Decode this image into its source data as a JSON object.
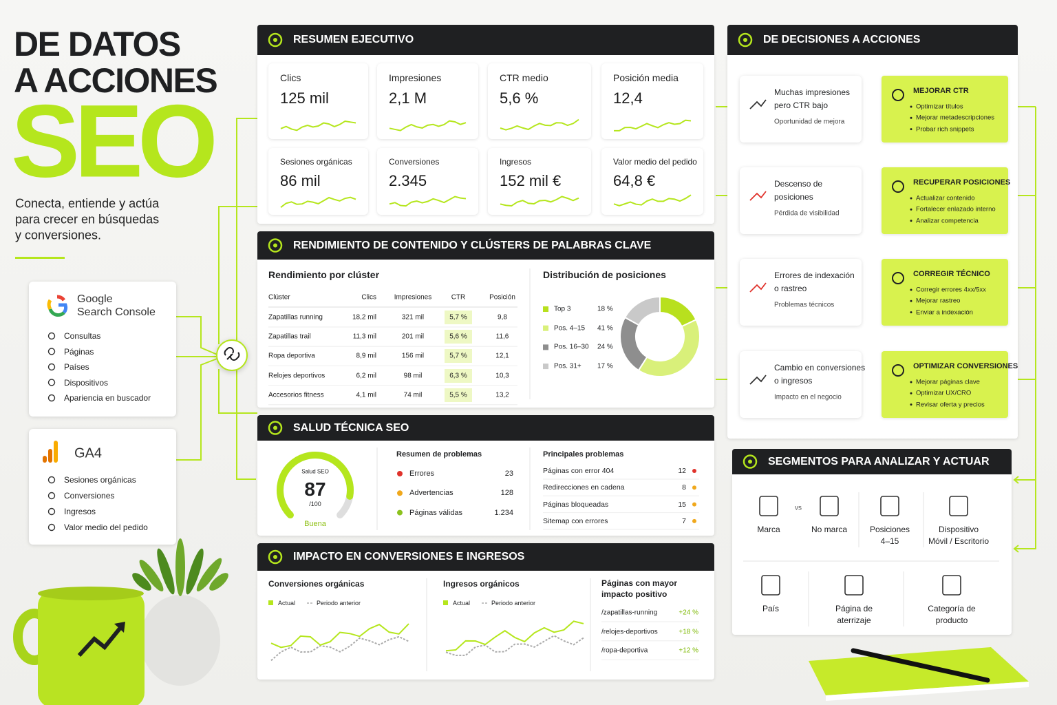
{
  "header": {
    "title_line1": "DE DATOS",
    "title_line2": "A ACCIONES",
    "title_big": "SEO",
    "subtitle_lines": [
      "Conecta, entiende y actúa",
      "para crecer en búsquedas",
      "y conversiones."
    ]
  },
  "sources": [
    {
      "name_lines": [
        "Google",
        "Search Console"
      ],
      "items": [
        "Consultas",
        "Páginas",
        "Países",
        "Dispositivos",
        "Apariencia en buscador"
      ]
    },
    {
      "name_lines": [
        "GA4"
      ],
      "items": [
        "Sesiones orgánicas",
        "Conversiones",
        "Ingresos",
        "Valor medio del pedido"
      ]
    }
  ],
  "summary": {
    "title": "RESUMEN EJECUTIVO",
    "kpis": [
      {
        "label": "Clics",
        "value": "125 mil"
      },
      {
        "label": "Impresiones",
        "value": "2,1 M"
      },
      {
        "label": "CTR medio",
        "value": "5,6 %"
      },
      {
        "label": "Posición media",
        "value": "12,4"
      },
      {
        "label": "Sesiones orgánicas",
        "value": "86 mil"
      },
      {
        "label": "Conversiones",
        "value": "2.345"
      },
      {
        "label": "Ingresos",
        "value": "152 mil €"
      },
      {
        "label": "Valor medio del pedido",
        "value": "64,8 €"
      }
    ]
  },
  "content": {
    "title": "RENDIMIENTO DE CONTENIDO Y CLÚSTERS DE PALABRAS CLAVE",
    "table": {
      "title": "Rendimiento por clúster",
      "columns": [
        "Clúster",
        "Clics",
        "Impresiones",
        "CTR",
        "Posición"
      ],
      "rows": [
        [
          "Zapatillas running",
          "18,2 mil",
          "321 mil",
          "5,7 %",
          "9,8"
        ],
        [
          "Zapatillas trail",
          "11,3 mil",
          "201 mil",
          "5,6 %",
          "11,6"
        ],
        [
          "Ropa deportiva",
          "8,9 mil",
          "156 mil",
          "5,7 %",
          "12,1"
        ],
        [
          "Relojes deportivos",
          "6,2 mil",
          "98 mil",
          "6,3 %",
          "10,3"
        ],
        [
          "Accesorios fitness",
          "4,1 mil",
          "74 mil",
          "5,5 %",
          "13,2"
        ]
      ]
    },
    "distribution": {
      "title": "Distribución de posiciones",
      "items": [
        {
          "label": "Top 3",
          "value": 18,
          "value_label": "18 %",
          "color": "#b8e01e"
        },
        {
          "label": "Pos. 4–15",
          "value": 41,
          "value_label": "41 %",
          "color": "#d9f07a"
        },
        {
          "label": "Pos. 16–30",
          "value": 24,
          "value_label": "24 %",
          "color": "#8e8e8e"
        },
        {
          "label": "Pos. 31+",
          "value": 17,
          "value_label": "17 %",
          "color": "#c9c9c9"
        }
      ]
    }
  },
  "health": {
    "title": "SALUD TÉCNICA SEO",
    "gauge": {
      "label": "Salud SEO",
      "score": 87,
      "max": {
        "value": 100,
        "label": "/100"
      },
      "status": "Buena"
    },
    "summary": {
      "title": "Resumen de problemas",
      "items": [
        {
          "label": "Errores",
          "value": "23",
          "color": "#e0322b"
        },
        {
          "label": "Advertencias",
          "value": "128",
          "color": "#f0a81c"
        },
        {
          "label": "Páginas válidas",
          "value": "1.234",
          "color": "#8cc21e"
        }
      ]
    },
    "problems": {
      "title": "Principales problemas",
      "items": [
        {
          "label": "Páginas con error 404",
          "value": "12",
          "color": "#e0322b"
        },
        {
          "label": "Redirecciones en cadena",
          "value": "8",
          "color": "#f0a81c"
        },
        {
          "label": "Páginas bloqueadas",
          "value": "15",
          "color": "#f0a81c"
        },
        {
          "label": "Sitemap con errores",
          "value": "7",
          "color": "#f0a81c"
        }
      ]
    }
  },
  "impact": {
    "title": "IMPACTO EN CONVERSIONES E INGRESOS",
    "charts": [
      {
        "title": "Conversiones orgánicas",
        "legend": [
          "Actual",
          "Periodo anterior"
        ]
      },
      {
        "title": "Ingresos orgánicos",
        "legend": [
          "Actual",
          "Periodo anterior"
        ]
      }
    ],
    "pages": {
      "title_lines": [
        "Páginas con mayor",
        "impacto positivo"
      ],
      "items": [
        {
          "path": "/zapatillas-running",
          "change": "+24 %"
        },
        {
          "path": "/relojes-deportivos",
          "change": "+18 %"
        },
        {
          "path": "/ropa-deportiva",
          "change": "+12 %"
        }
      ]
    }
  },
  "decisions": {
    "title": "DE DECISIONES A ACCIONES",
    "rows": [
      {
        "problem_lines": [
          "Muchas impresiones",
          "pero CTR bajo"
        ],
        "note": "Oportunidad de mejora",
        "action": "MEJORAR CTR",
        "steps": [
          "Optimizar títulos",
          "Mejorar metadescripciones",
          "Probar rich snippets"
        ]
      },
      {
        "problem_lines": [
          "Descenso de",
          "posiciones"
        ],
        "note": "Pérdida de visibilidad",
        "action": "RECUPERAR POSICIONES",
        "steps": [
          "Actualizar contenido",
          "Fortalecer enlazado interno",
          "Analizar competencia"
        ]
      },
      {
        "problem_lines": [
          "Errores de indexación",
          "o rastreo"
        ],
        "note": "Problemas técnicos",
        "action": "CORREGIR TÉCNICO",
        "steps": [
          "Corregir errores 4xx/5xx",
          "Mejorar rastreo",
          "Enviar a indexación"
        ]
      },
      {
        "problem_lines": [
          "Cambio en conversiones",
          "o ingresos"
        ],
        "note": "Impacto en el negocio",
        "action": "OPTIMIZAR CONVERSIONES",
        "steps": [
          "Mejorar páginas clave",
          "Optimizar UX/CRO",
          "Revisar oferta y precios"
        ]
      }
    ]
  },
  "segments": {
    "title": "SEGMENTOS PARA ANALIZAR Y ACTUAR",
    "vs": "vs",
    "items": [
      {
        "lines": [
          "Marca"
        ]
      },
      {
        "lines": [
          "No marca"
        ]
      },
      {
        "lines": [
          "Posiciones",
          "4–15"
        ]
      },
      {
        "lines": [
          "Dispositivo",
          "Móvil / Escritorio"
        ]
      },
      {
        "lines": [
          "País"
        ]
      },
      {
        "lines": [
          "Página de",
          "aterrizaje"
        ]
      },
      {
        "lines": [
          "Categoría de",
          "producto"
        ]
      }
    ]
  }
}
